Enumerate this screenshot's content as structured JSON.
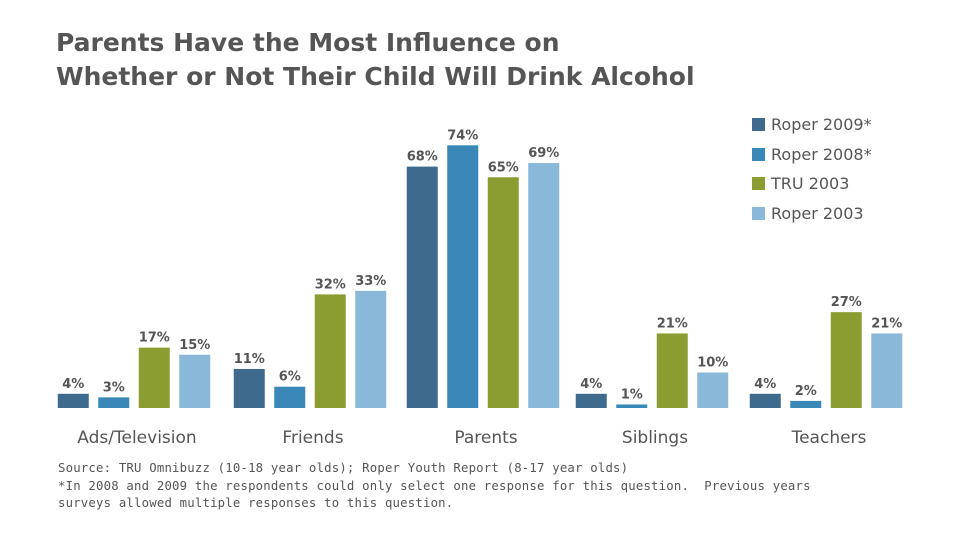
{
  "chart_data": {
    "type": "bar",
    "title": "Parents Have the Most Influence on Whether or Not Their Child Will Drink Alcohol",
    "title_lines": [
      "Parents Have the Most Influence on",
      "Whether or Not Their Child Will Drink Alcohol"
    ],
    "categories": [
      "Ads/Television",
      "Friends",
      "Parents",
      "Siblings",
      "Teachers"
    ],
    "series": [
      {
        "name": "Roper 2009*",
        "color": "#3e6a8e",
        "values": [
          4,
          11,
          68,
          4,
          4
        ],
        "labels": [
          "4%",
          "11%",
          "68%",
          "4%",
          "4%"
        ]
      },
      {
        "name": "Roper 2008*",
        "color": "#3a88b8",
        "values": [
          3,
          6,
          74,
          1,
          2
        ],
        "labels": [
          "3%",
          "6%",
          "74%",
          "1%",
          "2%"
        ]
      },
      {
        "name": "TRU 2003",
        "color": "#8b9c30",
        "values": [
          17,
          32,
          65,
          21,
          27
        ],
        "labels": [
          "17%",
          "32%",
          "65%",
          "21%",
          "27%"
        ]
      },
      {
        "name": "Roper 2003",
        "color": "#8ab8d8",
        "values": [
          15,
          33,
          69,
          10,
          21
        ],
        "labels": [
          "15%",
          "33%",
          "69%",
          "10%",
          "21%"
        ]
      }
    ],
    "xlabel": "",
    "ylabel": "",
    "ylim": [
      0,
      80
    ],
    "grid": false,
    "legend_position": "top-right"
  },
  "source": {
    "lines": [
      "Source: TRU Omnibuzz (10-18 year olds); Roper Youth Report (8-17 year olds)",
      "*In 2008 and 2009 the respondents could only select one response for this question.  Previous years",
      "surveys allowed multiple responses to this question."
    ]
  }
}
